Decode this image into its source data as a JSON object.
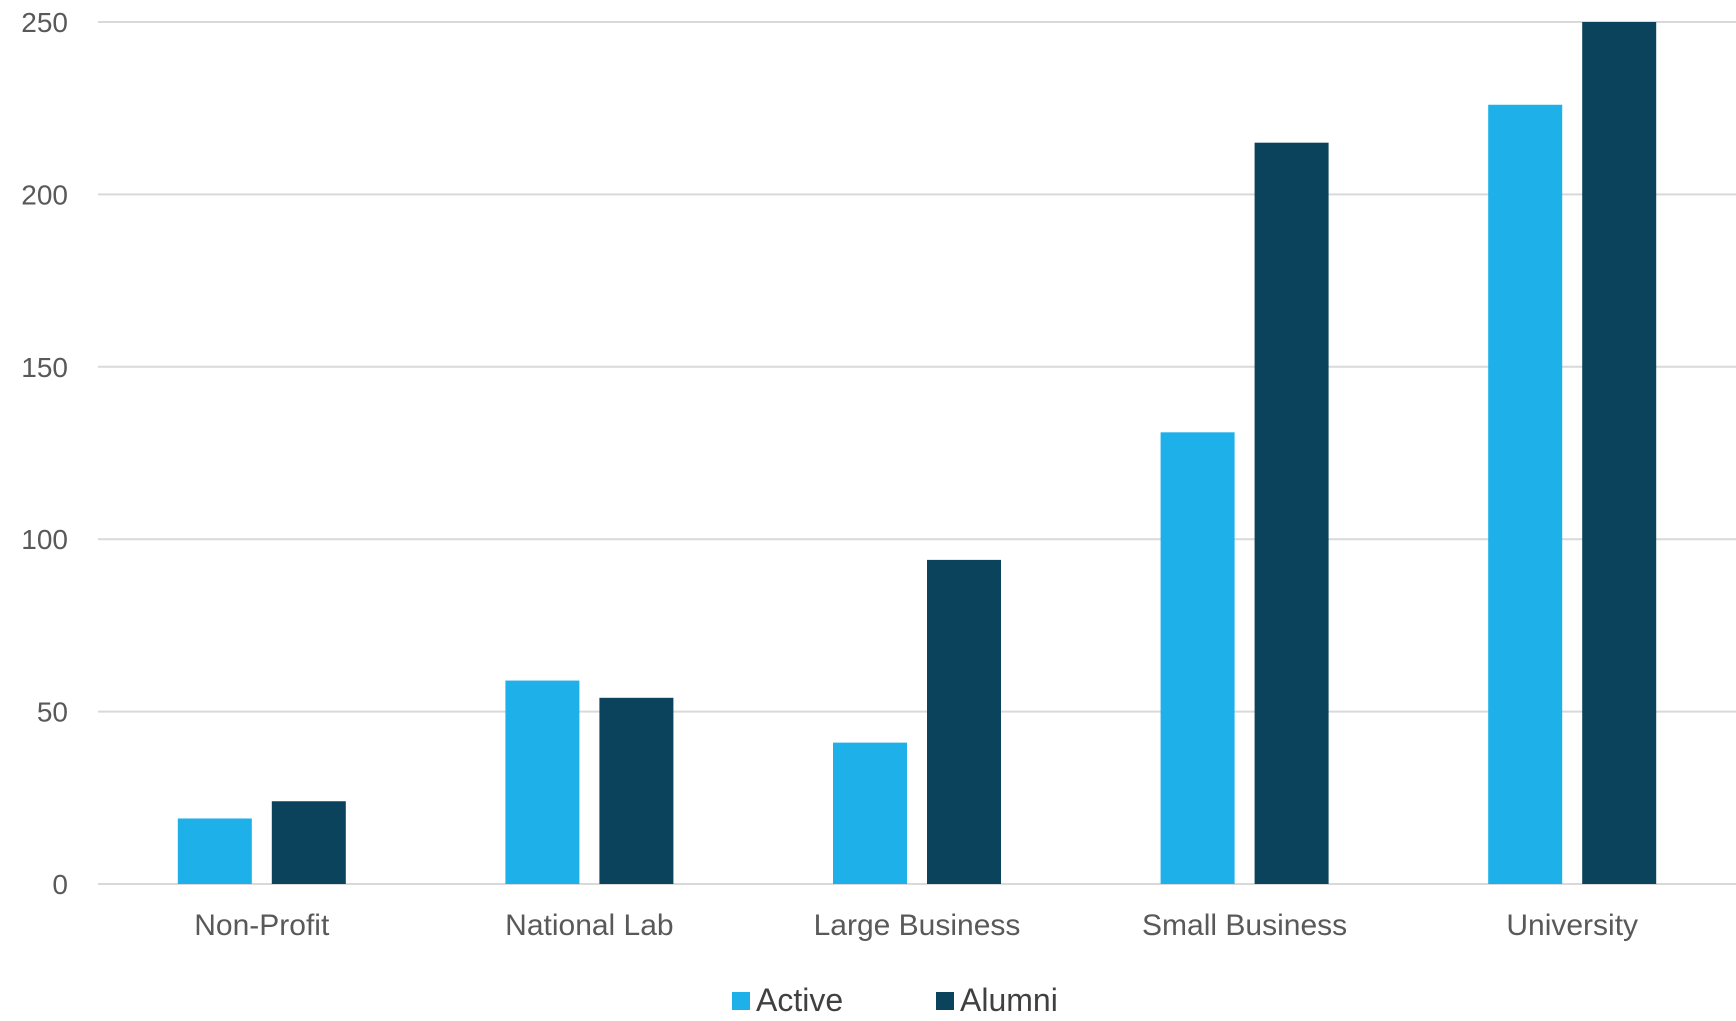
{
  "chart_data": {
    "type": "bar",
    "title": "",
    "xlabel": "",
    "ylabel": "",
    "categories": [
      "Non-Profit",
      "National Lab",
      "Large Business",
      "Small Business",
      "University"
    ],
    "series": [
      {
        "name": "Active",
        "color": "#1EB0E9",
        "values": [
          19,
          59,
          41,
          131,
          226
        ]
      },
      {
        "name": "Alumni",
        "color": "#0B425C",
        "values": [
          24,
          54,
          94,
          215,
          250
        ]
      }
    ],
    "ylim": [
      0,
      250
    ],
    "yticks": [
      "0",
      "50",
      "100",
      "150",
      "200",
      "250"
    ],
    "grid": true,
    "gridline_color": "#D9D9D9",
    "legend_position": "bottom-center"
  }
}
